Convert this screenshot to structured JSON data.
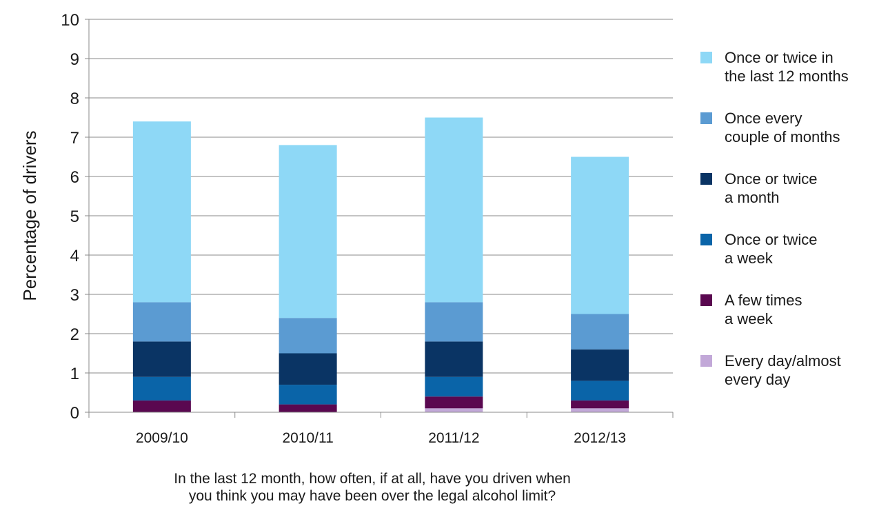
{
  "chart_data": {
    "type": "bar",
    "stacked": true,
    "categories": [
      "2009/10",
      "2010/11",
      "2011/12",
      "2012/13"
    ],
    "series": [
      {
        "name": "Every day/almost every day",
        "color": "#c2a8d8",
        "values": [
          0.0,
          0.0,
          0.1,
          0.1
        ]
      },
      {
        "name": "A few times a week",
        "color": "#5a0850",
        "values": [
          0.3,
          0.2,
          0.3,
          0.2
        ]
      },
      {
        "name": "Once or twice a week",
        "color": "#0a64a8",
        "values": [
          0.6,
          0.5,
          0.5,
          0.5
        ]
      },
      {
        "name": "Once or twice a month",
        "color": "#0a3464",
        "values": [
          0.9,
          0.8,
          0.9,
          0.8
        ]
      },
      {
        "name": "Once every couple of months",
        "color": "#5b9bd2",
        "values": [
          1.0,
          0.9,
          1.0,
          0.9
        ]
      },
      {
        "name": "Once or twice in the last 12 months",
        "color": "#8ed8f6",
        "values": [
          4.6,
          4.4,
          4.7,
          4.0
        ]
      }
    ],
    "ylabel": "Percentage of drivers",
    "xlabel": "In the last 12 month, how often, if at all, have you driven when you think you may have been over the legal alcohol limit?",
    "ylim": [
      0,
      10
    ],
    "yticks": [
      "0",
      "1",
      "2",
      "3",
      "4",
      "5",
      "6",
      "7",
      "8",
      "9",
      "10"
    ],
    "grid": true,
    "legend_position": "right"
  },
  "legend": {
    "items": [
      {
        "label": "Once or twice in\nthe last 12 months",
        "color": "#8ed8f6"
      },
      {
        "label": "Once every\ncouple of months",
        "color": "#5b9bd2"
      },
      {
        "label": "Once or twice\na month",
        "color": "#0a3464"
      },
      {
        "label": "Once or twice\na week",
        "color": "#0a64a8"
      },
      {
        "label": "A few times\na week",
        "color": "#5a0850"
      },
      {
        "label": "Every day/almost\nevery day",
        "color": "#c2a8d8"
      }
    ]
  },
  "xlabel_lines": [
    "In the last 12 month, how often, if at all, have you driven when",
    "you think you may have been over the legal alcohol limit?"
  ]
}
